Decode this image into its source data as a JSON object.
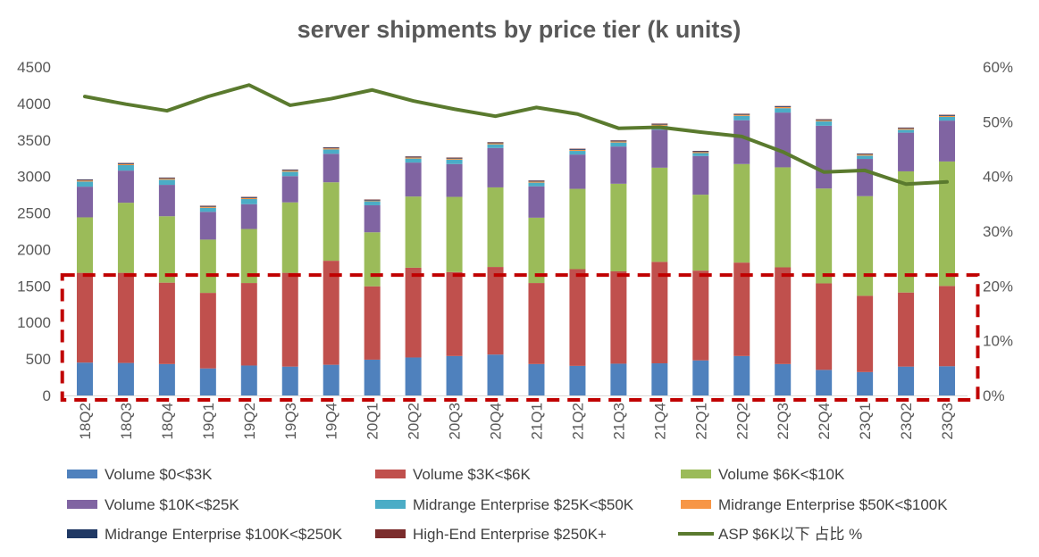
{
  "chart_data": {
    "type": "bar",
    "subtype": "stacked-bar-with-line",
    "title": "server shipments by price tier (k units)",
    "categories": [
      "18Q2",
      "18Q3",
      "18Q4",
      "19Q1",
      "19Q2",
      "19Q3",
      "19Q4",
      "20Q1",
      "20Q2",
      "20Q3",
      "20Q4",
      "21Q1",
      "21Q2",
      "21Q3",
      "21Q4",
      "22Q1",
      "22Q2",
      "22Q3",
      "22Q4",
      "23Q1",
      "23Q2",
      "23Q3"
    ],
    "y_left": {
      "ylim": [
        0,
        4500
      ],
      "ticks": [
        "0",
        "500",
        "1000",
        "1500",
        "2000",
        "2500",
        "3000",
        "3500",
        "4000",
        "4500"
      ],
      "tick_values": [
        0,
        500,
        1000,
        1500,
        2000,
        2500,
        3000,
        3500,
        4000,
        4500
      ]
    },
    "y_right": {
      "ylim": [
        0,
        60
      ],
      "ticks": [
        "0%",
        "10%",
        "20%",
        "30%",
        "40%",
        "50%",
        "60%"
      ],
      "tick_values": [
        0,
        10,
        20,
        30,
        40,
        50,
        60
      ]
    },
    "series": [
      {
        "name": "Volume $0<$3K",
        "color": "#4f81bd",
        "kind": "bar",
        "axis": "left",
        "values": [
          450,
          445,
          430,
          370,
          410,
          395,
          420,
          490,
          520,
          540,
          560,
          430,
          405,
          435,
          440,
          480,
          540,
          430,
          350,
          320,
          395,
          400
        ]
      },
      {
        "name": "Volume $3K<$6K",
        "color": "#c0504d",
        "kind": "bar",
        "axis": "left",
        "values": [
          1230,
          1235,
          1115,
          1035,
          1130,
          1285,
          1425,
          1005,
          1230,
          1150,
          1200,
          1110,
          1325,
          1265,
          1390,
          1230,
          1280,
          1325,
          1185,
          1045,
          1015,
          1100
        ]
      },
      {
        "name": "Volume $6K<$10K",
        "color": "#9bbb59",
        "kind": "bar",
        "axis": "left",
        "values": [
          760,
          960,
          910,
          730,
          740,
          965,
          1075,
          740,
          975,
          1030,
          1090,
          895,
          1100,
          1200,
          1290,
          1040,
          1350,
          1370,
          1300,
          1365,
          1660,
          1705
        ]
      },
      {
        "name": "Volume $10K<$25K",
        "color": "#8064a2",
        "kind": "bar",
        "axis": "left",
        "values": [
          420,
          440,
          430,
          380,
          340,
          360,
          390,
          370,
          465,
          450,
          540,
          430,
          470,
          510,
          520,
          530,
          600,
          750,
          860,
          510,
          530,
          560
        ]
      },
      {
        "name": "Midrange Enterprise $25K<$50K",
        "color": "#4bacc6",
        "kind": "bar",
        "axis": "left",
        "values": [
          70,
          75,
          70,
          55,
          70,
          60,
          60,
          55,
          55,
          60,
          50,
          50,
          50,
          55,
          55,
          40,
          60,
          60,
          60,
          45,
          40,
          50
        ]
      },
      {
        "name": "Midrange Enterprise $50K<$100K",
        "color": "#f79646",
        "kind": "bar",
        "axis": "left",
        "values": [
          15,
          15,
          15,
          15,
          15,
          15,
          15,
          10,
          15,
          15,
          15,
          15,
          15,
          15,
          15,
          15,
          15,
          15,
          15,
          15,
          15,
          15
        ]
      },
      {
        "name": "Midrange Enterprise $100K<$250K",
        "color": "#1f3864",
        "kind": "bar",
        "axis": "left",
        "values": [
          10,
          10,
          10,
          10,
          10,
          10,
          10,
          10,
          10,
          10,
          10,
          10,
          10,
          10,
          10,
          10,
          10,
          10,
          10,
          10,
          10,
          10
        ]
      },
      {
        "name": "High-End Enterprise $250K+",
        "color": "#7b2c2c",
        "kind": "bar",
        "axis": "left",
        "values": [
          5,
          5,
          5,
          5,
          5,
          5,
          5,
          5,
          5,
          5,
          5,
          5,
          5,
          5,
          5,
          5,
          5,
          5,
          5,
          5,
          5,
          5
        ]
      },
      {
        "name": "ASP $6K以下 占比 %",
        "color": "#5a7a2e",
        "kind": "line",
        "axis": "right",
        "values": [
          54.6,
          53.2,
          52.0,
          54.6,
          56.7,
          53.0,
          54.2,
          55.8,
          53.8,
          52.3,
          51.0,
          52.6,
          51.4,
          48.8,
          49.0,
          48.1,
          47.3,
          44.5,
          40.8,
          41.1,
          38.6,
          39.0
        ]
      }
    ],
    "legend": {
      "placement": "bottom",
      "entries": [
        {
          "label": "Volume $0<$3K",
          "color": "#4f81bd",
          "marker": "box"
        },
        {
          "label": "Volume $3K<$6K",
          "color": "#c0504d",
          "marker": "box"
        },
        {
          "label": "Volume $6K<$10K",
          "color": "#9bbb59",
          "marker": "box"
        },
        {
          "label": "Volume $10K<$25K",
          "color": "#8064a2",
          "marker": "box"
        },
        {
          "label": "Midrange Enterprise $25K<$50K",
          "color": "#4bacc6",
          "marker": "box"
        },
        {
          "label": "Midrange Enterprise $50K<$100K",
          "color": "#f79646",
          "marker": "box"
        },
        {
          "label": "Midrange Enterprise $100K<$250K",
          "color": "#1f3864",
          "marker": "box"
        },
        {
          "label": "High-End Enterprise $250K+",
          "color": "#7b2c2c",
          "marker": "box"
        },
        {
          "label": "ASP $6K以下 占比 %",
          "color": "#5a7a2e",
          "marker": "line"
        }
      ]
    },
    "annotation": {
      "kind": "dashed-rectangle",
      "color": "#c00000",
      "upper_value": 1650,
      "lower_value": 0,
      "from_category": "18Q2",
      "to_category": "23Q3"
    },
    "grid": false
  }
}
